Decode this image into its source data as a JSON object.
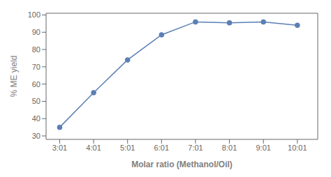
{
  "chart_data": {
    "type": "line",
    "xlabel": "Molar ratio (Methanol/Oil)",
    "ylabel": "% ME yield",
    "x": [
      3,
      4,
      5,
      6,
      7,
      8,
      9,
      10
    ],
    "values": [
      35,
      55,
      74,
      88.5,
      96,
      95.5,
      96,
      94
    ],
    "color": "#5b7fb5",
    "marker": "o",
    "xlim": [
      2.6,
      10.6
    ],
    "xticks": [
      {
        "value": 3,
        "label": "3:01"
      },
      {
        "value": 4,
        "label": "4:01"
      },
      {
        "value": 5,
        "label": "5:01"
      },
      {
        "value": 6,
        "label": "6:01"
      },
      {
        "value": 7,
        "label": "7:01"
      },
      {
        "value": 8,
        "label": "8:01"
      },
      {
        "value": 9,
        "label": "9:01"
      },
      {
        "value": 10,
        "label": "10:01"
      }
    ],
    "ylim": [
      28,
      101
    ],
    "yticks": [
      30,
      40,
      50,
      60,
      70,
      80,
      90,
      100
    ]
  }
}
